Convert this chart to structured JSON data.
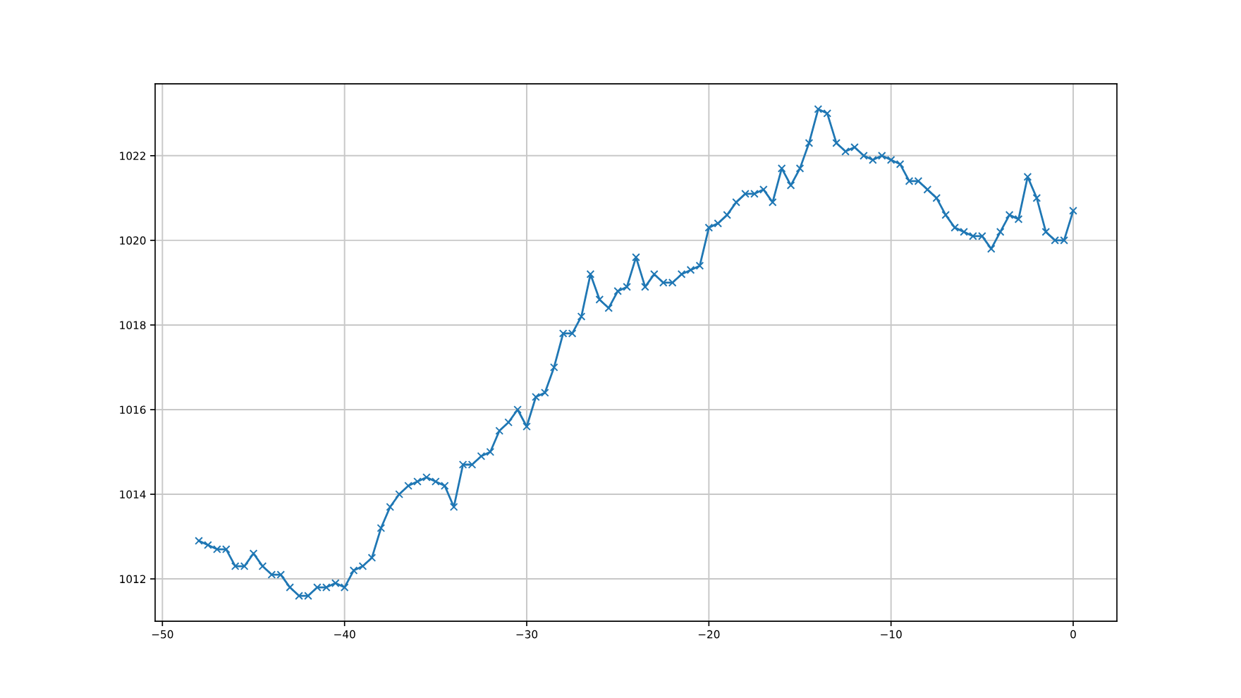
{
  "chart_data": {
    "type": "line",
    "x": [
      -48,
      -47.5,
      -47,
      -46.5,
      -46,
      -45.5,
      -45,
      -44.5,
      -44,
      -43.5,
      -43,
      -42.5,
      -42,
      -41.5,
      -41,
      -40.5,
      -40,
      -39.5,
      -39,
      -38.5,
      -38,
      -37.5,
      -37,
      -36.5,
      -36,
      -35.5,
      -35,
      -34.5,
      -34,
      -33.5,
      -33,
      -32.5,
      -32,
      -31.5,
      -31,
      -30.5,
      -30,
      -29.5,
      -29,
      -28.5,
      -28,
      -27.5,
      -27,
      -26.5,
      -26,
      -25.5,
      -25,
      -24.5,
      -24,
      -23.5,
      -23,
      -22.5,
      -22,
      -21.5,
      -21,
      -20.5,
      -20,
      -19.5,
      -19,
      -18.5,
      -18,
      -17.5,
      -17,
      -16.5,
      -16,
      -15.5,
      -15,
      -14.5,
      -14,
      -13.5,
      -13,
      -12.5,
      -12,
      -11.5,
      -11,
      -10.5,
      -10,
      -9.5,
      -9,
      -8.5,
      -8,
      -7.5,
      -7,
      -6.5,
      -6,
      -5.5,
      -5,
      -4.5,
      -4,
      -3.5,
      -3,
      -2.5,
      -2,
      -1.5,
      -1,
      -0.5,
      0
    ],
    "series": [
      {
        "color": "#1f77b4",
        "values": [
          1012.9,
          1012.8,
          1012.7,
          1012.7,
          1012.3,
          1012.3,
          1012.6,
          1012.3,
          1012.1,
          1012.1,
          1011.8,
          1011.6,
          1011.6,
          1011.8,
          1011.8,
          1011.9,
          1011.8,
          1012.2,
          1012.3,
          1012.5,
          1013.2,
          1013.7,
          1014.0,
          1014.2,
          1014.3,
          1014.4,
          1014.3,
          1014.2,
          1013.7,
          1014.7,
          1014.7,
          1014.9,
          1015.0,
          1015.5,
          1015.7,
          1016.0,
          1015.6,
          1016.3,
          1016.4,
          1017.0,
          1017.8,
          1017.8,
          1018.2,
          1019.2,
          1018.6,
          1018.4,
          1018.8,
          1018.9,
          1019.6,
          1018.9,
          1019.2,
          1019.0,
          1019.0,
          1019.2,
          1019.3,
          1019.4,
          1020.3,
          1020.4,
          1020.6,
          1020.9,
          1021.1,
          1021.1,
          1021.2,
          1020.9,
          1021.7,
          1021.3,
          1021.7,
          1022.3,
          1023.1,
          1023.0,
          1022.3,
          1022.1,
          1022.2,
          1022.0,
          1021.9,
          1022.0,
          1021.9,
          1021.8,
          1021.4,
          1021.4,
          1021.2,
          1021.0,
          1020.6,
          1020.3,
          1020.2,
          1020.1,
          1020.1,
          1019.8,
          1020.2,
          1020.6,
          1020.5,
          1021.5,
          1021.0,
          1020.2,
          1020.0,
          1020.0,
          1020.7
        ]
      }
    ],
    "xlim": [
      -50.4,
      2.4
    ],
    "ylim": [
      1011.0,
      1023.7
    ],
    "xticks": [
      {
        "value": -50,
        "label": "−50"
      },
      {
        "value": -40,
        "label": "−40"
      },
      {
        "value": -30,
        "label": "−30"
      },
      {
        "value": -20,
        "label": "−20"
      },
      {
        "value": -10,
        "label": "−10"
      },
      0
    ],
    "yticks": [
      1012,
      1014,
      1016,
      1018,
      1020,
      1022
    ],
    "grid": true,
    "marker": "cross",
    "line_style": "solid"
  }
}
